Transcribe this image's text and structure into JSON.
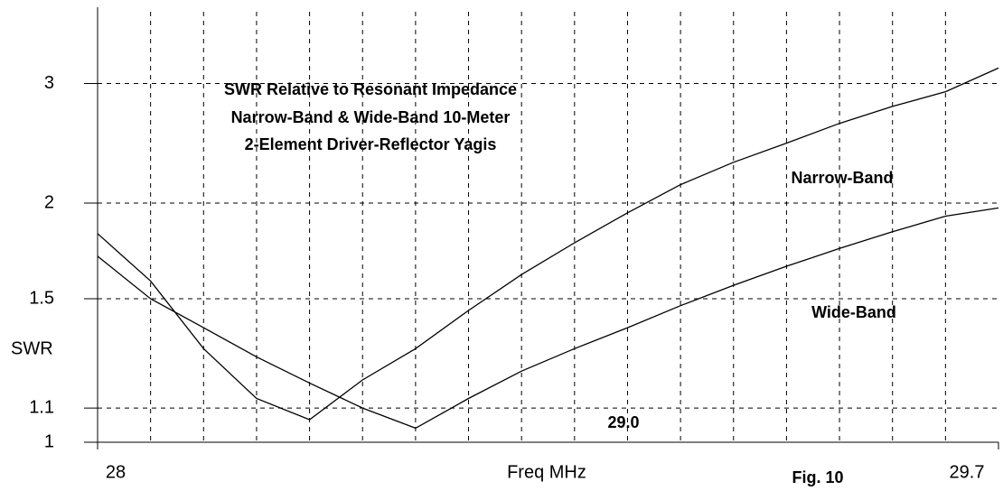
{
  "chart_data": {
    "type": "line",
    "title": [
      "SWR Relative to Resonant Impedance",
      "Narrow-Band & Wide-Band 10-Meter",
      "2-Element Driver-Reflector Yagis"
    ],
    "xlabel": "Freq MHz",
    "ylabel": "SWR",
    "annotations": [
      "29.0",
      "Fig. 10"
    ],
    "x": [
      28.0,
      28.1,
      28.2,
      28.3,
      28.4,
      28.5,
      28.6,
      28.7,
      28.8,
      28.9,
      29.0,
      29.1,
      29.2,
      29.3,
      29.4,
      29.5,
      29.6,
      29.7
    ],
    "series": [
      {
        "name": "Narrow-Band",
        "color": "#000000",
        "values": [
          1.82,
          1.58,
          1.3,
          1.13,
          1.065,
          1.19,
          1.3,
          1.45,
          1.61,
          1.77,
          1.94,
          2.12,
          2.28,
          2.43,
          2.6,
          2.76,
          2.91,
          3.18
        ]
      },
      {
        "name": "Wide-Band",
        "color": "#000000",
        "values": [
          1.7,
          1.5,
          1.38,
          1.27,
          1.18,
          1.1,
          1.04,
          1.13,
          1.22,
          1.3,
          1.38,
          1.47,
          1.56,
          1.65,
          1.74,
          1.83,
          1.92,
          1.97
        ]
      }
    ],
    "xlim": [
      28,
      29.7
    ],
    "xticks": [
      28,
      29.7
    ],
    "xgrid": [
      28.1,
      28.2,
      28.3,
      28.4,
      28.5,
      28.6,
      28.7,
      28.8,
      28.9,
      29.0,
      29.1,
      29.2,
      29.3,
      29.4,
      29.5,
      29.6
    ],
    "ylim": [
      1,
      4
    ],
    "yticks": [
      1,
      1.1,
      1.5,
      2,
      3
    ],
    "yscale": "swr",
    "grid": true
  }
}
